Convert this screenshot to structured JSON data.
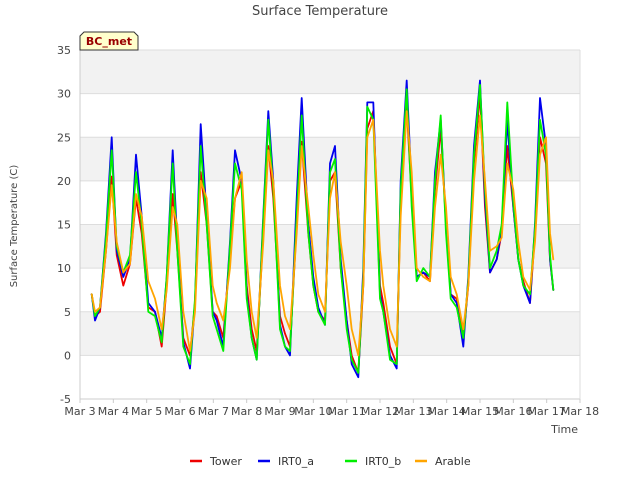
{
  "chart_data": {
    "type": "line",
    "title": "Surface Temperature",
    "site_badge": "BC_met",
    "xlabel": "Time",
    "ylabel": "Surface Temperature (C)",
    "ylim": [
      -5,
      35
    ],
    "xlim": [
      "2024-03-03",
      "2024-03-18"
    ],
    "yticks": [
      -5,
      0,
      5,
      10,
      15,
      20,
      25,
      30,
      35
    ],
    "xticks": [
      "Mar 3",
      "Mar 4",
      "Mar 5",
      "Mar 6",
      "Mar 7",
      "Mar 8",
      "Mar 9",
      "Mar 10",
      "Mar 11",
      "Mar 12",
      "Mar 13",
      "Mar 14",
      "Mar 15",
      "Mar 16",
      "Mar 17",
      "Mar 18"
    ],
    "legend_position": "bottom",
    "grid": "horizontal bands",
    "series": [
      {
        "name": "Tower",
        "color": "#ee0000",
        "x": [
          3.35,
          3.45,
          3.6,
          3.78,
          3.95,
          4.1,
          4.3,
          4.5,
          4.68,
          4.85,
          5.05,
          5.25,
          5.45,
          5.6,
          5.78,
          5.92,
          6.1,
          6.3,
          6.45,
          6.62,
          6.8,
          6.98,
          7.1,
          7.3,
          7.5,
          7.65,
          7.85,
          8.0,
          8.15,
          8.3,
          8.5,
          8.65,
          8.8,
          9.0,
          9.15,
          9.3,
          9.5,
          9.65,
          9.85,
          10.0,
          10.15,
          10.35,
          10.5,
          10.65,
          10.82,
          11.0,
          11.15,
          11.35,
          11.5,
          11.62,
          11.8,
          12.0,
          12.1,
          12.3,
          12.5,
          12.62,
          12.8,
          12.95,
          13.1,
          13.3,
          13.5,
          13.65,
          13.82,
          13.98,
          14.12,
          14.3,
          14.5,
          14.65,
          14.82,
          15.0,
          15.15,
          15.3,
          15.5,
          15.65,
          15.82,
          16.0,
          16.15,
          16.3,
          16.5,
          16.65,
          16.8,
          16.98,
          17.1,
          17.2
        ],
        "y": [
          7.0,
          4.5,
          5.0,
          12.0,
          20.5,
          11.5,
          8.0,
          10.5,
          18.0,
          14.0,
          5.5,
          5.0,
          1.0,
          8.0,
          18.5,
          12.0,
          2.0,
          0.0,
          6.0,
          21.0,
          15.0,
          5.0,
          4.5,
          2.0,
          12.0,
          18.0,
          20.0,
          8.0,
          3.0,
          0.5,
          14.0,
          24.0,
          18.0,
          4.5,
          2.5,
          1.0,
          15.0,
          24.5,
          14.0,
          8.0,
          5.0,
          4.0,
          20.0,
          21.0,
          10.0,
          4.0,
          0.0,
          -2.0,
          8.0,
          26.0,
          28.0,
          8.0,
          6.0,
          1.0,
          -1.0,
          18.0,
          28.5,
          18.0,
          9.0,
          9.5,
          8.5,
          19.0,
          26.0,
          15.0,
          7.0,
          6.5,
          2.0,
          8.0,
          22.0,
          30.0,
          17.0,
          9.5,
          11.0,
          14.0,
          24.0,
          17.0,
          11.0,
          8.5,
          6.0,
          14.0,
          25.0,
          22.0,
          11.0,
          7.5
        ]
      },
      {
        "name": "IRT0_a",
        "color": "#0000ee",
        "x": [
          3.35,
          3.45,
          3.6,
          3.78,
          3.95,
          4.1,
          4.3,
          4.5,
          4.68,
          4.85,
          5.05,
          5.25,
          5.45,
          5.6,
          5.78,
          5.92,
          6.1,
          6.3,
          6.45,
          6.62,
          6.8,
          6.98,
          7.1,
          7.3,
          7.5,
          7.65,
          7.85,
          8.0,
          8.15,
          8.3,
          8.5,
          8.65,
          8.8,
          9.0,
          9.15,
          9.3,
          9.5,
          9.65,
          9.85,
          10.0,
          10.15,
          10.35,
          10.5,
          10.65,
          10.82,
          11.0,
          11.15,
          11.35,
          11.5,
          11.62,
          11.8,
          12.0,
          12.1,
          12.3,
          12.5,
          12.62,
          12.8,
          12.95,
          13.1,
          13.3,
          13.5,
          13.65,
          13.82,
          13.98,
          14.12,
          14.3,
          14.5,
          14.65,
          14.82,
          15.0,
          15.15,
          15.3,
          15.5,
          15.65,
          15.82,
          16.0,
          16.15,
          16.3,
          16.5,
          16.65,
          16.8,
          16.98,
          17.1,
          17.2
        ],
        "y": [
          7.0,
          4.0,
          5.5,
          14.0,
          25.0,
          12.0,
          9.0,
          11.0,
          23.0,
          16.0,
          6.0,
          5.0,
          2.0,
          9.0,
          23.5,
          13.0,
          1.5,
          -1.5,
          6.0,
          26.5,
          16.0,
          5.0,
          4.0,
          1.0,
          13.0,
          23.5,
          20.0,
          7.0,
          2.0,
          -0.5,
          16.0,
          28.0,
          20.0,
          3.5,
          1.0,
          0.0,
          18.0,
          29.5,
          15.0,
          9.0,
          5.5,
          3.5,
          22.0,
          24.0,
          11.0,
          4.0,
          -1.0,
          -2.5,
          10.0,
          29.0,
          29.0,
          7.0,
          5.0,
          0.0,
          -1.5,
          20.0,
          31.5,
          19.0,
          9.0,
          9.5,
          9.0,
          21.0,
          27.0,
          15.0,
          7.0,
          6.0,
          1.0,
          9.0,
          24.0,
          31.5,
          18.0,
          9.5,
          11.0,
          14.5,
          27.0,
          17.0,
          11.0,
          8.0,
          6.0,
          15.0,
          29.5,
          24.0,
          11.0,
          7.5
        ]
      },
      {
        "name": "IRT0_b",
        "color": "#00ee00",
        "x": [
          3.35,
          3.45,
          3.6,
          3.78,
          3.95,
          4.1,
          4.3,
          4.5,
          4.68,
          4.85,
          5.05,
          5.25,
          5.45,
          5.6,
          5.78,
          5.92,
          6.1,
          6.3,
          6.45,
          6.62,
          6.8,
          6.98,
          7.1,
          7.3,
          7.5,
          7.65,
          7.85,
          8.0,
          8.15,
          8.3,
          8.5,
          8.65,
          8.8,
          9.0,
          9.15,
          9.3,
          9.5,
          9.65,
          9.85,
          10.0,
          10.15,
          10.35,
          10.5,
          10.65,
          10.82,
          11.0,
          11.15,
          11.35,
          11.5,
          11.62,
          11.8,
          12.0,
          12.1,
          12.3,
          12.5,
          12.62,
          12.8,
          12.95,
          13.1,
          13.3,
          13.5,
          13.65,
          13.82,
          13.98,
          14.12,
          14.3,
          14.5,
          14.65,
          14.82,
          15.0,
          15.15,
          15.3,
          15.5,
          15.65,
          15.82,
          16.0,
          16.15,
          16.3,
          16.5,
          16.65,
          16.8,
          16.98,
          17.1,
          17.2
        ],
        "y": [
          7.0,
          4.5,
          5.5,
          13.5,
          23.5,
          12.5,
          9.5,
          11.5,
          21.0,
          15.0,
          5.0,
          4.5,
          1.5,
          9.0,
          22.0,
          12.0,
          1.0,
          -1.0,
          6.5,
          24.0,
          15.0,
          4.5,
          3.0,
          0.5,
          12.5,
          22.0,
          19.0,
          6.5,
          2.0,
          -0.5,
          15.5,
          27.0,
          19.0,
          3.0,
          1.0,
          0.5,
          16.0,
          27.5,
          14.0,
          8.0,
          5.0,
          3.5,
          21.0,
          22.5,
          10.0,
          3.0,
          -0.5,
          -2.0,
          9.0,
          28.5,
          27.0,
          6.5,
          5.0,
          -0.5,
          -1.0,
          19.0,
          30.5,
          17.0,
          8.5,
          10.0,
          9.0,
          20.0,
          27.5,
          14.0,
          6.5,
          5.5,
          2.0,
          8.5,
          23.0,
          31.0,
          19.0,
          10.0,
          12.0,
          15.0,
          29.0,
          17.5,
          11.0,
          8.0,
          7.0,
          14.5,
          27.0,
          23.0,
          11.5,
          7.5
        ]
      },
      {
        "name": "Arable",
        "color": "#ffa500",
        "x": [
          3.35,
          3.45,
          3.6,
          3.78,
          3.95,
          4.1,
          4.3,
          4.5,
          4.68,
          4.85,
          5.05,
          5.25,
          5.45,
          5.6,
          5.78,
          5.92,
          6.1,
          6.3,
          6.45,
          6.62,
          6.8,
          6.98,
          7.1,
          7.3,
          7.5,
          7.65,
          7.85,
          8.0,
          8.15,
          8.3,
          8.5,
          8.65,
          8.8,
          9.0,
          9.15,
          9.3,
          9.5,
          9.65,
          9.85,
          10.0,
          10.15,
          10.35,
          10.5,
          10.65,
          10.82,
          11.0,
          11.15,
          11.35,
          11.5,
          11.62,
          11.8,
          12.0,
          12.1,
          12.3,
          12.5,
          12.62,
          12.8,
          12.95,
          13.1,
          13.3,
          13.5,
          13.65,
          13.82,
          13.98,
          14.12,
          14.3,
          14.5,
          14.65,
          14.82,
          15.0,
          15.15,
          15.3,
          15.5,
          15.65,
          15.82,
          16.0,
          16.15,
          16.3,
          16.5,
          16.65,
          16.8,
          16.98,
          17.1,
          17.2
        ],
        "y": [
          7.0,
          5.0,
          5.5,
          12.0,
          19.5,
          13.0,
          9.5,
          10.5,
          18.5,
          16.0,
          8.5,
          6.5,
          3.0,
          7.5,
          17.0,
          15.0,
          5.0,
          0.5,
          5.0,
          20.0,
          18.0,
          8.0,
          6.0,
          4.0,
          10.0,
          18.0,
          21.0,
          11.0,
          5.0,
          2.0,
          13.0,
          23.5,
          20.0,
          8.0,
          4.5,
          3.0,
          14.0,
          24.0,
          17.0,
          11.5,
          7.0,
          5.0,
          18.0,
          21.0,
          13.0,
          8.0,
          3.0,
          0.0,
          8.0,
          25.0,
          27.0,
          12.0,
          8.0,
          3.0,
          1.0,
          16.0,
          28.0,
          21.0,
          10.0,
          9.0,
          8.5,
          17.0,
          23.0,
          17.0,
          9.0,
          7.0,
          3.0,
          8.0,
          20.0,
          27.5,
          20.0,
          12.0,
          12.5,
          13.5,
          22.0,
          19.0,
          13.0,
          9.0,
          7.5,
          13.0,
          23.0,
          25.0,
          14.0,
          11.0
        ]
      }
    ]
  }
}
